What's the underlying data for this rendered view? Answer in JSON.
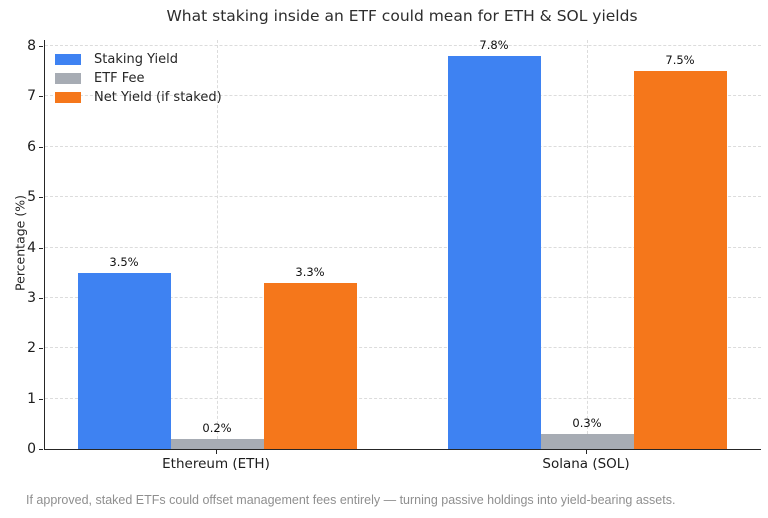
{
  "title": "What staking inside an ETF could mean for ETH & SOL yields",
  "footer": "If approved, staked ETFs could offset management fees entirely — turning passive holdings into yield-bearing assets.",
  "colors": {
    "staking_yield": "#3e82f2",
    "etf_fee": "#a7acb4",
    "net_yield": "#f5771b",
    "grid": "#dcdcdc",
    "spine": "#262626",
    "footer_text": "#8f8f8f"
  },
  "chart_data": {
    "type": "bar",
    "categories": [
      "Ethereum (ETH)",
      "Solana (SOL)"
    ],
    "series": [
      {
        "name": "Staking Yield",
        "color": "#3e82f2",
        "values": [
          3.5,
          7.8
        ],
        "value_labels": [
          "3.5%",
          "7.8%"
        ]
      },
      {
        "name": "ETF Fee",
        "color": "#a7acb4",
        "values": [
          0.2,
          0.3
        ],
        "value_labels": [
          "0.2%",
          "0.3%"
        ]
      },
      {
        "name": "Net Yield (if staked)",
        "color": "#f5771b",
        "values": [
          3.3,
          7.5
        ],
        "value_labels": [
          "3.3%",
          "7.5%"
        ]
      }
    ],
    "title": "What staking inside an ETF could mean for ETH & SOL yields",
    "xlabel": "",
    "ylabel": "Percentage (%)",
    "yticks": [
      0,
      1,
      2,
      3,
      4,
      5,
      6,
      7,
      8
    ],
    "ytick_labels": [
      "0",
      "1",
      "2",
      "3",
      "4",
      "5",
      "6",
      "7",
      "8"
    ],
    "ylim": [
      0,
      8.12
    ],
    "grid": true,
    "grid_style": "dashed",
    "legend_position": "upper left",
    "legend_frame": false
  }
}
